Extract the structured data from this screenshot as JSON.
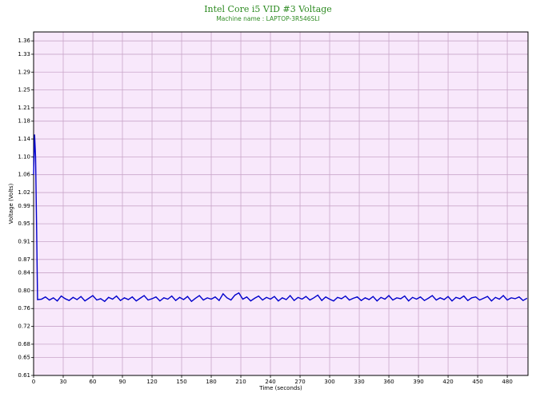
{
  "chart_data": {
    "type": "line",
    "title": "Intel Core i5 VID #3 Voltage",
    "subtitle": "Machine name : LAPTOP-3R546SLI",
    "x_label": "Time (seconds)",
    "y_label": "Voltage (Volts)",
    "grid": true,
    "color": "#0000cc",
    "xlim": [
      0,
      501
    ],
    "ylim": [
      0.61,
      1.38
    ],
    "xticks": [
      0,
      30,
      60,
      90,
      120,
      150,
      180,
      210,
      240,
      270,
      300,
      330,
      360,
      390,
      420,
      450,
      480
    ],
    "yticks": [
      0.61,
      0.65,
      0.68,
      0.72,
      0.76,
      {
        "value": 0.8,
        "label": "0.80"
      },
      0.84,
      0.87,
      0.91,
      0.95,
      0.99,
      1.02,
      1.06,
      {
        "value": 1.1,
        "label": "1.10"
      },
      1.14,
      1.18,
      1.21,
      1.25,
      1.29,
      1.33,
      1.36
    ],
    "x": [
      0,
      1,
      2,
      3,
      4,
      8,
      12,
      16,
      20,
      24,
      28,
      32,
      36,
      40,
      44,
      48,
      52,
      56,
      60,
      64,
      68,
      72,
      76,
      80,
      84,
      88,
      92,
      96,
      100,
      104,
      108,
      112,
      116,
      120,
      124,
      128,
      132,
      136,
      140,
      144,
      148,
      152,
      156,
      160,
      164,
      168,
      172,
      176,
      180,
      184,
      188,
      192,
      196,
      200,
      204,
      208,
      212,
      216,
      220,
      224,
      228,
      232,
      236,
      240,
      244,
      248,
      252,
      256,
      260,
      264,
      268,
      272,
      276,
      280,
      284,
      288,
      292,
      296,
      300,
      304,
      308,
      312,
      316,
      320,
      324,
      328,
      332,
      336,
      340,
      344,
      348,
      352,
      356,
      360,
      364,
      368,
      372,
      376,
      380,
      384,
      388,
      392,
      396,
      400,
      404,
      408,
      412,
      416,
      420,
      424,
      428,
      432,
      436,
      440,
      444,
      448,
      452,
      456,
      460,
      464,
      468,
      472,
      476,
      480,
      484,
      488,
      492,
      496,
      500
    ],
    "values": [
      1.06,
      1.15,
      1.1,
      0.95,
      0.78,
      0.781,
      0.786,
      0.779,
      0.784,
      0.777,
      0.788,
      0.782,
      0.778,
      0.785,
      0.78,
      0.787,
      0.777,
      0.783,
      0.789,
      0.779,
      0.782,
      0.776,
      0.785,
      0.781,
      0.788,
      0.778,
      0.784,
      0.78,
      0.786,
      0.777,
      0.783,
      0.789,
      0.779,
      0.782,
      0.786,
      0.777,
      0.784,
      0.781,
      0.788,
      0.778,
      0.785,
      0.78,
      0.787,
      0.776,
      0.783,
      0.789,
      0.779,
      0.784,
      0.781,
      0.786,
      0.778,
      0.793,
      0.784,
      0.779,
      0.79,
      0.795,
      0.781,
      0.786,
      0.777,
      0.783,
      0.788,
      0.779,
      0.785,
      0.781,
      0.787,
      0.777,
      0.784,
      0.78,
      0.789,
      0.778,
      0.785,
      0.781,
      0.787,
      0.779,
      0.784,
      0.79,
      0.778,
      0.786,
      0.781,
      0.777,
      0.785,
      0.782,
      0.788,
      0.779,
      0.783,
      0.786,
      0.778,
      0.784,
      0.78,
      0.787,
      0.777,
      0.785,
      0.781,
      0.789,
      0.779,
      0.784,
      0.782,
      0.788,
      0.777,
      0.785,
      0.781,
      0.786,
      0.778,
      0.783,
      0.789,
      0.779,
      0.784,
      0.78,
      0.787,
      0.777,
      0.785,
      0.782,
      0.788,
      0.778,
      0.784,
      0.786,
      0.779,
      0.783,
      0.787,
      0.777,
      0.785,
      0.781,
      0.789,
      0.779,
      0.784,
      0.782,
      0.786,
      0.778,
      0.783
    ]
  }
}
